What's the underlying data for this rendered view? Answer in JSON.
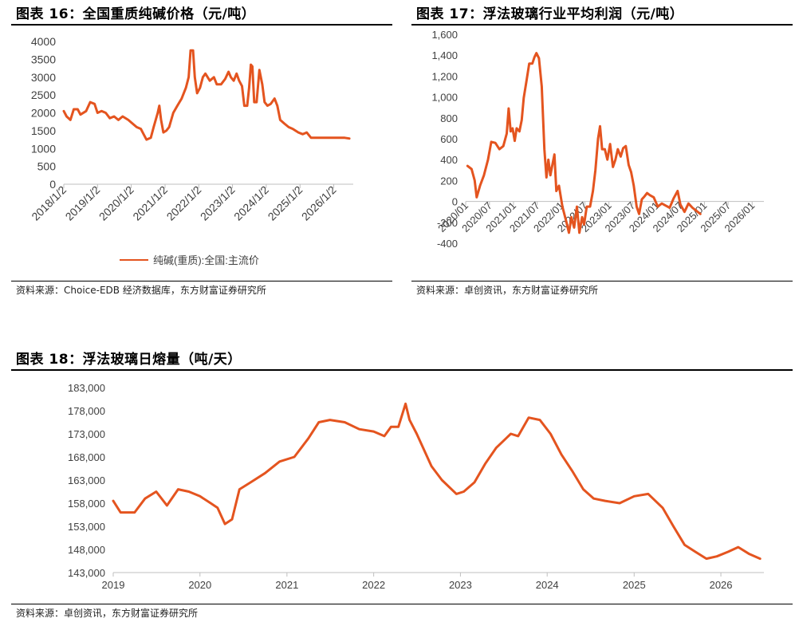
{
  "colors": {
    "series": "#E4541F",
    "axis": "#BFBFBF",
    "text": "#404040"
  },
  "panels": [
    {
      "title": "图表 16：全国重质纯碱价格（元/吨）",
      "source": "资料来源：Choice-EDB 经济数据库，东方财富证券研究所"
    },
    {
      "title": "图表 17：浮法玻璃行业平均利润（元/吨）",
      "source": "资料来源：卓创资讯，东方财富证券研究所"
    },
    {
      "title": "图表 18：浮法玻璃日熔量（吨/天）",
      "source": "资料来源：卓创资讯，东方财富证券研究所"
    }
  ],
  "chart_data": [
    {
      "type": "line",
      "ylim": [
        0,
        4000
      ],
      "yticks": [
        "4000",
        "3500",
        "3000",
        "2500",
        "2000",
        "1500",
        "1000",
        "500",
        "0"
      ],
      "x_range": [
        "2018/1/2",
        "2026/8/1"
      ],
      "xticks": [
        "2018/1/2",
        "2019/1/2",
        "2020/1/2",
        "2021/1/2",
        "2022/1/2",
        "2023/1/2",
        "2024/1/2",
        "2025/1/2",
        "2026/1/2"
      ],
      "legend": {
        "position": "bottom",
        "entries": [
          "纯碱(重质):全国:主流价"
        ]
      },
      "series": [
        {
          "name": "纯碱(重质):全国:主流价",
          "points": [
            [
              "2018/01/02",
              2050
            ],
            [
              "2018/02/01",
              1900
            ],
            [
              "2018/03/15",
              1800
            ],
            [
              "2018/04/20",
              2100
            ],
            [
              "2018/06/01",
              2100
            ],
            [
              "2018/07/01",
              1950
            ],
            [
              "2018/09/01",
              2050
            ],
            [
              "2018/10/15",
              2300
            ],
            [
              "2018/12/01",
              2250
            ],
            [
              "2019/01/02",
              2000
            ],
            [
              "2019/02/15",
              2050
            ],
            [
              "2019/04/01",
              2000
            ],
            [
              "2019/05/15",
              1850
            ],
            [
              "2019/07/01",
              1900
            ],
            [
              "2019/08/15",
              1800
            ],
            [
              "2019/10/01",
              1900
            ],
            [
              "2019/12/01",
              1800
            ],
            [
              "2020/01/15",
              1700
            ],
            [
              "2020/03/01",
              1600
            ],
            [
              "2020/04/15",
              1550
            ],
            [
              "2020/05/15",
              1400
            ],
            [
              "2020/06/15",
              1250
            ],
            [
              "2020/08/01",
              1300
            ],
            [
              "2020/09/01",
              1600
            ],
            [
              "2020/10/15",
              2000
            ],
            [
              "2020/11/01",
              2200
            ],
            [
              "2020/11/20",
              1800
            ],
            [
              "2020/12/15",
              1450
            ],
            [
              "2021/01/15",
              1500
            ],
            [
              "2021/02/15",
              1600
            ],
            [
              "2021/04/01",
              2000
            ],
            [
              "2021/05/15",
              2200
            ],
            [
              "2021/07/01",
              2400
            ],
            [
              "2021/08/15",
              2700
            ],
            [
              "2021/09/15",
              3000
            ],
            [
              "2021/10/05",
              3750
            ],
            [
              "2021/11/01",
              3750
            ],
            [
              "2021/11/20",
              3000
            ],
            [
              "2021/12/15",
              2550
            ],
            [
              "2022/01/15",
              2700
            ],
            [
              "2022/02/15",
              3000
            ],
            [
              "2022/03/15",
              3100
            ],
            [
              "2022/05/01",
              2900
            ],
            [
              "2022/06/15",
              3000
            ],
            [
              "2022/07/15",
              2800
            ],
            [
              "2022/09/01",
              2800
            ],
            [
              "2022/10/15",
              2950
            ],
            [
              "2022/11/20",
              3150
            ],
            [
              "2022/12/15",
              3000
            ],
            [
              "2023/01/15",
              2900
            ],
            [
              "2023/02/15",
              3100
            ],
            [
              "2023/03/15",
              2900
            ],
            [
              "2023/04/15",
              2750
            ],
            [
              "2023/05/10",
              2200
            ],
            [
              "2023/06/10",
              2200
            ],
            [
              "2023/07/01",
              2700
            ],
            [
              "2023/07/20",
              3350
            ],
            [
              "2023/08/05",
              3300
            ],
            [
              "2023/08/25",
              2300
            ],
            [
              "2023/09/20",
              2300
            ],
            [
              "2023/10/20",
              3200
            ],
            [
              "2023/11/20",
              2800
            ],
            [
              "2023/12/15",
              2300
            ],
            [
              "2024/01/15",
              2200
            ],
            [
              "2024/02/20",
              2250
            ],
            [
              "2024/04/01",
              2400
            ],
            [
              "2024/05/01",
              2200
            ],
            [
              "2024/06/01",
              1800
            ],
            [
              "2024/07/15",
              1700
            ],
            [
              "2024/09/01",
              1600
            ],
            [
              "2024/10/15",
              1550
            ],
            [
              "2024/12/15",
              1450
            ],
            [
              "2025/02/01",
              1400
            ],
            [
              "2025/03/15",
              1450
            ],
            [
              "2025/05/01",
              1300
            ],
            [
              "2025/07/01",
              1300
            ],
            [
              "2025/09/01",
              1300
            ],
            [
              "2025/11/01",
              1300
            ],
            [
              "2026/01/15",
              1300
            ],
            [
              "2026/03/01",
              1300
            ],
            [
              "2026/05/01",
              1300
            ],
            [
              "2026/06/20",
              1280
            ]
          ]
        }
      ]
    },
    {
      "type": "line",
      "ylim": [
        -400,
        1600
      ],
      "yticks": [
        "1,600",
        "1,400",
        "1,200",
        "1,000",
        "800",
        "600",
        "400",
        "200",
        "0",
        "-200",
        "-400"
      ],
      "x_range": [
        "2020/01",
        "2026/04"
      ],
      "xticks": [
        "2020/01",
        "2020/07",
        "2021/01",
        "2021/07",
        "2022/01",
        "2022/07",
        "2023/01",
        "2023/07",
        "2024/01",
        "2024/07",
        "2025/01",
        "2025/07",
        "2026/01"
      ],
      "series": [
        {
          "name": "",
          "points": [
            [
              "2020/01/15",
              340
            ],
            [
              "2020/02/15",
              310
            ],
            [
              "2020/03/10",
              200
            ],
            [
              "2020/03/25",
              40
            ],
            [
              "2020/04/20",
              150
            ],
            [
              "2020/05/20",
              250
            ],
            [
              "2020/06/20",
              400
            ],
            [
              "2020/07/15",
              570
            ],
            [
              "2020/08/15",
              560
            ],
            [
              "2020/09/15",
              500
            ],
            [
              "2020/10/15",
              530
            ],
            [
              "2020/11/10",
              650
            ],
            [
              "2020/11/25",
              890
            ],
            [
              "2020/12/10",
              670
            ],
            [
              "2020/12/25",
              700
            ],
            [
              "2021/01/10",
              580
            ],
            [
              "2021/01/25",
              700
            ],
            [
              "2021/02/15",
              670
            ],
            [
              "2021/03/05",
              780
            ],
            [
              "2021/03/20",
              990
            ],
            [
              "2021/04/10",
              1150
            ],
            [
              "2021/05/01",
              1320
            ],
            [
              "2021/05/25",
              1320
            ],
            [
              "2021/06/10",
              1380
            ],
            [
              "2021/06/25",
              1420
            ],
            [
              "2021/07/15",
              1370
            ],
            [
              "2021/08/05",
              1100
            ],
            [
              "2021/08/25",
              500
            ],
            [
              "2021/09/10",
              230
            ],
            [
              "2021/09/25",
              400
            ],
            [
              "2021/10/10",
              250
            ],
            [
              "2021/10/25",
              350
            ],
            [
              "2021/11/10",
              450
            ],
            [
              "2021/11/25",
              100
            ],
            [
              "2021/12/15",
              150
            ],
            [
              "2022/01/10",
              -50
            ],
            [
              "2022/02/10",
              -200
            ],
            [
              "2022/03/01",
              -300
            ],
            [
              "2022/03/20",
              -150
            ],
            [
              "2022/04/10",
              -250
            ],
            [
              "2022/05/01",
              -50
            ],
            [
              "2022/05/20",
              -300
            ],
            [
              "2022/06/10",
              -150
            ],
            [
              "2022/06/25",
              -220
            ],
            [
              "2022/07/15",
              -50
            ],
            [
              "2022/08/10",
              -50
            ],
            [
              "2022/09/01",
              100
            ],
            [
              "2022/09/20",
              300
            ],
            [
              "2022/10/10",
              600
            ],
            [
              "2022/10/25",
              720
            ],
            [
              "2022/11/10",
              500
            ],
            [
              "2022/12/01",
              500
            ],
            [
              "2022/12/20",
              400
            ],
            [
              "2023/01/10",
              550
            ],
            [
              "2023/02/01",
              330
            ],
            [
              "2023/02/20",
              400
            ],
            [
              "2023/03/10",
              500
            ],
            [
              "2023/04/01",
              430
            ],
            [
              "2023/04/20",
              510
            ],
            [
              "2023/05/10",
              530
            ],
            [
              "2023/06/01",
              350
            ],
            [
              "2023/06/20",
              280
            ],
            [
              "2023/07/10",
              150
            ],
            [
              "2023/08/01",
              -50
            ],
            [
              "2023/08/20",
              -120
            ],
            [
              "2023/09/10",
              20
            ],
            [
              "2023/10/01",
              50
            ],
            [
              "2023/10/20",
              80
            ],
            [
              "2023/11/10",
              60
            ],
            [
              "2023/12/10",
              40
            ],
            [
              "2024/01/10",
              -50
            ],
            [
              "2024/02/10",
              -20
            ],
            [
              "2024/03/10",
              -40
            ],
            [
              "2024/04/10",
              -60
            ],
            [
              "2024/05/10",
              30
            ],
            [
              "2024/06/10",
              100
            ],
            [
              "2024/07/01",
              -30
            ],
            [
              "2024/08/01",
              -100
            ],
            [
              "2024/09/01",
              -20
            ],
            [
              "2024/10/01",
              -60
            ],
            [
              "2024/11/01",
              -90
            ],
            [
              "2024/12/01",
              -120
            ]
          ]
        }
      ]
    },
    {
      "type": "line",
      "ylim": [
        143000,
        183000
      ],
      "yticks": [
        "183,000",
        "178,000",
        "173,000",
        "168,000",
        "163,000",
        "158,000",
        "153,000",
        "148,000",
        "143,000"
      ],
      "x_range": [
        "2019/01/01",
        "2026/07/01"
      ],
      "xticks": [
        "2019",
        "2020",
        "2021",
        "2022",
        "2023",
        "2024",
        "2025",
        "2026"
      ],
      "series": [
        {
          "name": "",
          "points": [
            [
              "2019/01/01",
              158500
            ],
            [
              "2019/02/01",
              156000
            ],
            [
              "2019/04/01",
              156000
            ],
            [
              "2019/05/15",
              159000
            ],
            [
              "2019/07/01",
              160500
            ],
            [
              "2019/08/15",
              157500
            ],
            [
              "2019/10/01",
              161000
            ],
            [
              "2019/11/15",
              160500
            ],
            [
              "2020/01/01",
              159500
            ],
            [
              "2020/02/15",
              158000
            ],
            [
              "2020/03/15",
              157000
            ],
            [
              "2020/04/15",
              153500
            ],
            [
              "2020/05/15",
              154500
            ],
            [
              "2020/06/15",
              161000
            ],
            [
              "2020/08/01",
              162500
            ],
            [
              "2020/10/01",
              164500
            ],
            [
              "2020/12/01",
              167000
            ],
            [
              "2021/02/01",
              168000
            ],
            [
              "2021/04/01",
              172000
            ],
            [
              "2021/05/15",
              175500
            ],
            [
              "2021/07/01",
              176000
            ],
            [
              "2021/09/01",
              175500
            ],
            [
              "2021/11/01",
              174000
            ],
            [
              "2022/01/01",
              173500
            ],
            [
              "2022/02/15",
              172500
            ],
            [
              "2022/03/15",
              174500
            ],
            [
              "2022/04/15",
              174500
            ],
            [
              "2022/05/15",
              179500
            ],
            [
              "2022/06/01",
              176000
            ],
            [
              "2022/07/01",
              173000
            ],
            [
              "2022/09/01",
              166000
            ],
            [
              "2022/10/15",
              163000
            ],
            [
              "2022/12/15",
              160000
            ],
            [
              "2023/01/15",
              160500
            ],
            [
              "2023/03/01",
              162500
            ],
            [
              "2023/04/15",
              166500
            ],
            [
              "2023/06/01",
              170000
            ],
            [
              "2023/08/01",
              173000
            ],
            [
              "2023/09/01",
              172500
            ],
            [
              "2023/10/15",
              176500
            ],
            [
              "2023/12/01",
              176000
            ],
            [
              "2024/01/15",
              173000
            ],
            [
              "2024/03/01",
              168500
            ],
            [
              "2024/04/15",
              165000
            ],
            [
              "2024/06/01",
              161000
            ],
            [
              "2024/07/15",
              159000
            ],
            [
              "2024/09/01",
              158500
            ],
            [
              "2024/11/01",
              158000
            ],
            [
              "2025/01/01",
              159500
            ],
            [
              "2025/03/01",
              160000
            ],
            [
              "2025/05/01",
              157000
            ],
            [
              "2025/06/15",
              153000
            ],
            [
              "2025/08/01",
              149000
            ],
            [
              "2025/09/15",
              147500
            ],
            [
              "2025/11/01",
              146000
            ],
            [
              "2025/12/15",
              146500
            ],
            [
              "2026/02/01",
              147500
            ],
            [
              "2026/03/15",
              148500
            ],
            [
              "2026/05/01",
              147000
            ],
            [
              "2026/06/15",
              146000
            ]
          ]
        }
      ]
    }
  ]
}
